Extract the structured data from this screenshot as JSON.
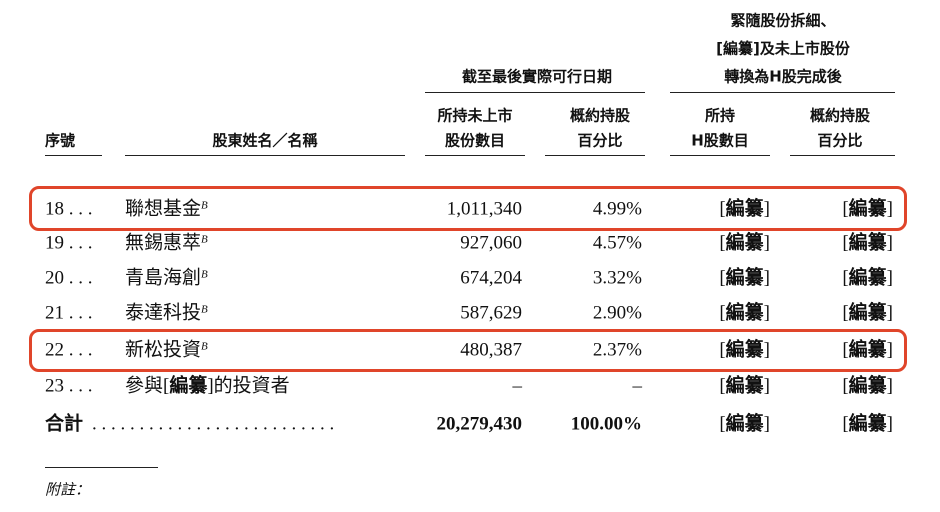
{
  "header": {
    "groups": [
      {
        "lines": [
          "截至最後實際可行日期"
        ]
      },
      {
        "lines": [
          "緊隨股份拆細、",
          "[編纂]及未上市股份",
          "轉換為H股完成後"
        ]
      }
    ],
    "columns": [
      [
        "序號"
      ],
      [
        "股東姓名／名稱"
      ],
      [
        "所持未上市",
        "股份數目"
      ],
      [
        "概約持股",
        "百分比"
      ],
      [
        "所持",
        "H股數目"
      ],
      [
        "概約持股",
        "百分比"
      ]
    ]
  },
  "rows": [
    {
      "no": "18 . . .",
      "name": "聯想基金",
      "note": "B",
      "shares": "1,011,340",
      "percent": "4.99%",
      "h_shares": "[編纂]",
      "h_percent": "[編纂]"
    },
    {
      "no": "19 . . .",
      "name": "無錫惠萃",
      "note": "B",
      "shares": "927,060",
      "percent": "4.57%",
      "h_shares": "[編纂]",
      "h_percent": "[編纂]"
    },
    {
      "no": "20 . . .",
      "name": "青島海創",
      "note": "B",
      "shares": "674,204",
      "percent": "3.32%",
      "h_shares": "[編纂]",
      "h_percent": "[編纂]"
    },
    {
      "no": "21 . . .",
      "name": "泰達科投",
      "note": "B",
      "shares": "587,629",
      "percent": "2.90%",
      "h_shares": "[編纂]",
      "h_percent": "[編纂]"
    },
    {
      "no": "22 . . .",
      "name": "新松投資",
      "note": "B",
      "shares": "480,387",
      "percent": "2.37%",
      "h_shares": "[編纂]",
      "h_percent": "[編纂]"
    },
    {
      "no": "23 . . .",
      "name": "參與[編纂]的投資者",
      "shares": "–",
      "percent": "–",
      "h_shares": "[編纂]",
      "h_percent": "[編纂]"
    }
  ],
  "total": {
    "label": "合計",
    "leader": ". . . . . . . . . . . . . . . . . . . . . . . . . .",
    "shares": "20,279,430",
    "percent": "100.00%",
    "h_shares": "[編纂]",
    "h_percent": "[編纂]"
  },
  "footnote": "附註："
}
